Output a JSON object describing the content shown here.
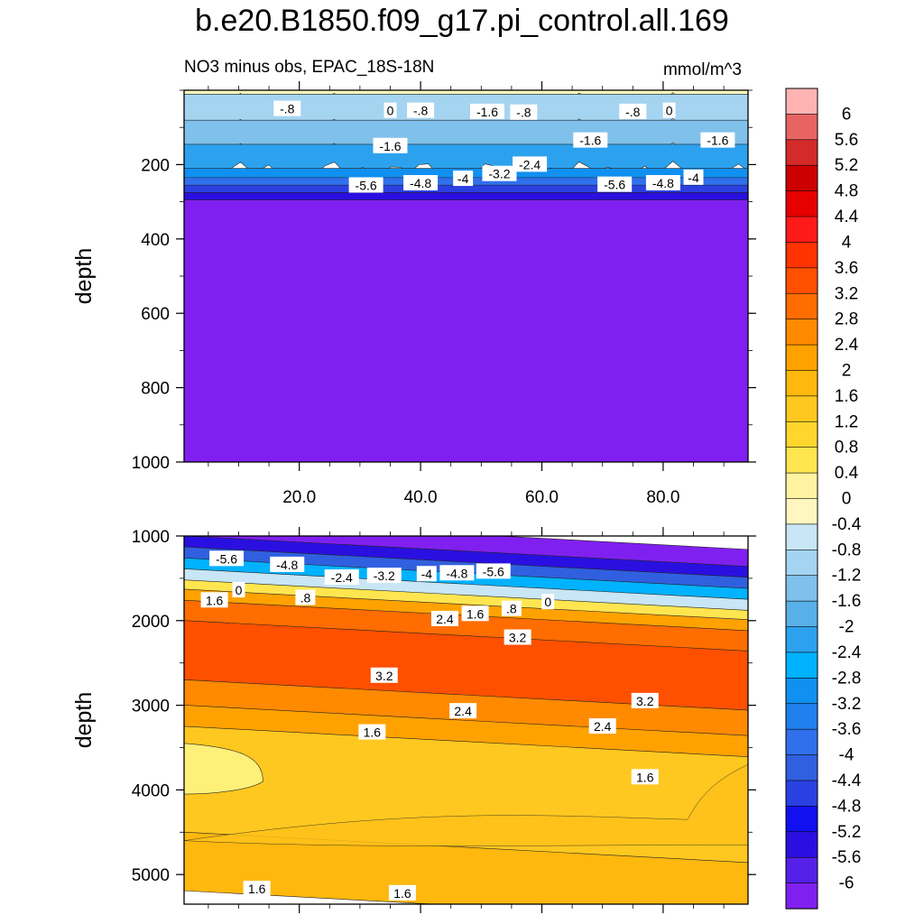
{
  "title": "b.e20.B1850.f09_g17.pi_control.all.169",
  "subtitle": "NO3 minus obs, EPAC_18S-18N",
  "units": "mmol/m^3",
  "chart_data": [
    {
      "type": "heatmap",
      "panel": "upper",
      "ylabel": "depth",
      "xlabel": "",
      "xlim": [
        1,
        94
      ],
      "ylim": [
        1000,
        0
      ],
      "xticks": [
        20,
        40,
        60,
        80
      ],
      "xtick_labels": [
        "20.0",
        "40.0",
        "60.0",
        "80.0"
      ],
      "yticks": [
        200,
        400,
        600,
        800,
        1000
      ],
      "ytick_labels": [
        "200",
        "400",
        "600",
        "800",
        "1000"
      ],
      "bands": [
        {
          "d0": 0,
          "d1": 12,
          "value": 0.6
        },
        {
          "d0": 12,
          "d1": 30,
          "value": -0.3
        },
        {
          "d0": 30,
          "d1": 100,
          "value": -0.9
        },
        {
          "d0": 100,
          "d1": 165,
          "value": -1.5
        },
        {
          "d0": 165,
          "d1": 215,
          "value": -2.1
        },
        {
          "d0": 215,
          "d1": 240,
          "value": -2.9
        },
        {
          "d0": 240,
          "d1": 260,
          "value": -3.7
        },
        {
          "d0": 260,
          "d1": 280,
          "value": -4.6
        },
        {
          "d0": 280,
          "d1": 300,
          "value": -5.4
        },
        {
          "d0": 300,
          "d1": 1000,
          "value": -6.2
        }
      ],
      "contour_labels": [
        {
          "x": 18,
          "depth": 50,
          "text": "-.8"
        },
        {
          "x": 35,
          "depth": 55,
          "text": "0"
        },
        {
          "x": 40,
          "depth": 55,
          "text": "-.8"
        },
        {
          "x": 51,
          "depth": 58,
          "text": "-1.6"
        },
        {
          "x": 57,
          "depth": 60,
          "text": "-.8"
        },
        {
          "x": 75,
          "depth": 58,
          "text": "-.8"
        },
        {
          "x": 81,
          "depth": 55,
          "text": "0"
        },
        {
          "x": 35,
          "depth": 150,
          "text": "-1.6"
        },
        {
          "x": 68,
          "depth": 135,
          "text": "-1.6"
        },
        {
          "x": 89,
          "depth": 135,
          "text": "-1.6"
        },
        {
          "x": 58,
          "depth": 200,
          "text": "-2.4"
        },
        {
          "x": 53,
          "depth": 225,
          "text": "-3.2"
        },
        {
          "x": 47,
          "depth": 238,
          "text": "-4"
        },
        {
          "x": 85,
          "depth": 235,
          "text": "-4"
        },
        {
          "x": 40,
          "depth": 250,
          "text": "-4.8"
        },
        {
          "x": 80,
          "depth": 250,
          "text": "-4.8"
        },
        {
          "x": 31,
          "depth": 256,
          "text": "-5.6"
        },
        {
          "x": 72,
          "depth": 254,
          "text": "-5.6"
        }
      ]
    },
    {
      "type": "heatmap",
      "panel": "lower",
      "ylabel": "depth",
      "xlabel": "",
      "xlim": [
        1,
        94
      ],
      "ylim": [
        5350,
        1000
      ],
      "yticks": [
        1000,
        2000,
        3000,
        4000,
        5000
      ],
      "ytick_labels": [
        "1000",
        "2000",
        "3000",
        "4000",
        "5000"
      ],
      "bands": [
        {
          "d0": 1000,
          "d1": 1200,
          "value": -6.2
        },
        {
          "d0": 1200,
          "d1": 1330,
          "value": -5.4
        },
        {
          "d0": 1330,
          "d1": 1460,
          "value": -4.2
        },
        {
          "d0": 1460,
          "d1": 1590,
          "value": -2.6
        },
        {
          "d0": 1590,
          "d1": 1720,
          "value": -0.8
        },
        {
          "d0": 1720,
          "d1": 1830,
          "value": 0.6
        },
        {
          "d0": 1830,
          "d1": 1960,
          "value": 2.0
        },
        {
          "d0": 1960,
          "d1": 2200,
          "value": 2.9
        },
        {
          "d0": 2200,
          "d1": 2900,
          "value": 3.5
        },
        {
          "d0": 2900,
          "d1": 3200,
          "value": 2.7
        },
        {
          "d0": 3200,
          "d1": 3450,
          "value": 2.0
        },
        {
          "d0": 3450,
          "d1": 4700,
          "value": 1.4
        },
        {
          "d0": 4700,
          "d1": 5350,
          "value": 1.8
        }
      ],
      "contour_labels": [
        {
          "x": 8,
          "depth": 1270,
          "text": "-5.6"
        },
        {
          "x": 18,
          "depth": 1340,
          "text": "-4.8"
        },
        {
          "x": 27,
          "depth": 1490,
          "text": "-2.4"
        },
        {
          "x": 34,
          "depth": 1470,
          "text": "-3.2"
        },
        {
          "x": 41,
          "depth": 1450,
          "text": "-4"
        },
        {
          "x": 46,
          "depth": 1440,
          "text": "-4.8"
        },
        {
          "x": 52,
          "depth": 1420,
          "text": "-5.6"
        },
        {
          "x": 6,
          "depth": 1760,
          "text": "1.6"
        },
        {
          "x": 10,
          "depth": 1640,
          "text": "0"
        },
        {
          "x": 21,
          "depth": 1730,
          "text": ".8"
        },
        {
          "x": 44,
          "depth": 1980,
          "text": "2.4"
        },
        {
          "x": 49,
          "depth": 1920,
          "text": "1.6"
        },
        {
          "x": 55,
          "depth": 1860,
          "text": ".8"
        },
        {
          "x": 61,
          "depth": 1780,
          "text": "0"
        },
        {
          "x": 56,
          "depth": 2200,
          "text": "3.2"
        },
        {
          "x": 34,
          "depth": 2650,
          "text": "3.2"
        },
        {
          "x": 77,
          "depth": 2950,
          "text": "3.2"
        },
        {
          "x": 47,
          "depth": 3070,
          "text": "2.4"
        },
        {
          "x": 70,
          "depth": 3250,
          "text": "2.4"
        },
        {
          "x": 32,
          "depth": 3320,
          "text": "1.6"
        },
        {
          "x": 77,
          "depth": 3850,
          "text": "1.6"
        },
        {
          "x": 13,
          "depth": 5170,
          "text": "1.6"
        },
        {
          "x": 37,
          "depth": 5220,
          "text": "1.6"
        }
      ]
    }
  ],
  "colorbar": {
    "labels": [
      "6",
      "5.6",
      "5.2",
      "4.8",
      "4.4",
      "4",
      "3.6",
      "3.2",
      "2.8",
      "2.4",
      "2",
      "1.6",
      "1.2",
      "0.8",
      "0.4",
      "0",
      "-0.4",
      "-0.8",
      "-1.2",
      "-1.6",
      "-2",
      "-2.4",
      "-2.8",
      "-3.2",
      "-3.6",
      "-4",
      "-4.4",
      "-4.8",
      "-5.2",
      "-5.6",
      "-6"
    ],
    "colors": [
      "#ffb3b3",
      "#e86464",
      "#d42a2a",
      "#cc0000",
      "#e60000",
      "#ff1a1a",
      "#ff3300",
      "#ff5000",
      "#ff6d00",
      "#ff8a00",
      "#ffa200",
      "#ffb80e",
      "#ffc820",
      "#ffd62e",
      "#ffe650",
      "#fff2a0",
      "#fff7bf",
      "#c8e6f5",
      "#a5d4f0",
      "#80c1eb",
      "#59b0e8",
      "#2ca2ee",
      "#00b2ff",
      "#1090f0",
      "#2080ee",
      "#3070ec",
      "#3060e0",
      "#2a40e0",
      "#1010f0",
      "#2a10e0",
      "#5520e8",
      "#8020f0"
    ]
  }
}
